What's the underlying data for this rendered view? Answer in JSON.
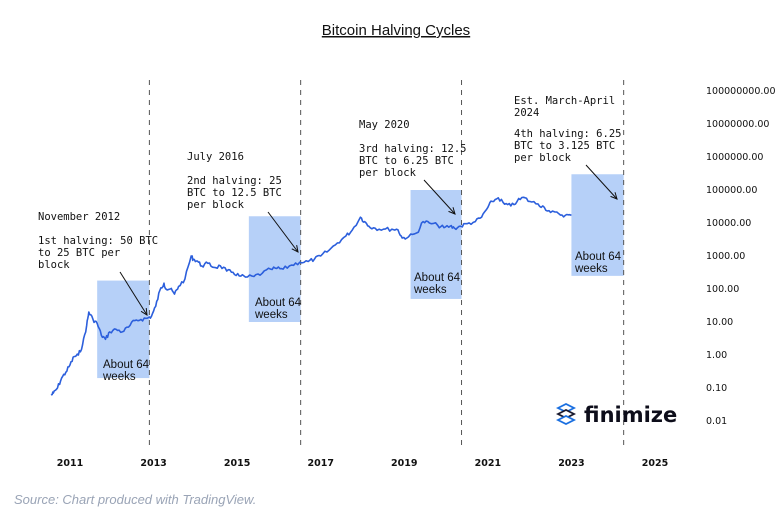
{
  "chart_data": {
    "type": "line",
    "title": "Bitcoin Halving Cycles",
    "y_scale": "log",
    "y_ticks": [
      "100000000.00",
      "10000000.00",
      "1000000.00",
      "100000.00",
      "10000.00",
      "1000.00",
      "100.00",
      "10.00",
      "1.00",
      "0.10",
      "0.01"
    ],
    "x_ticks": [
      "2011",
      "2013",
      "2015",
      "2017",
      "2019",
      "2021",
      "2023",
      "2025"
    ],
    "xlim": [
      2010.5,
      2025.5
    ],
    "ylim": [
      0.01,
      100000000
    ],
    "line_color": "#2c5fdc",
    "series": [
      {
        "x": [
          2010.55,
          2010.6,
          2010.7,
          2010.8,
          2010.9,
          2011.0,
          2011.1,
          2011.2,
          2011.3,
          2011.4,
          2011.45,
          2011.55,
          2011.65,
          2011.75,
          2011.85,
          2011.95,
          2012.1,
          2012.25,
          2012.4,
          2012.55,
          2012.7,
          2012.85,
          2012.95,
          2013.05,
          2013.15,
          2013.25,
          2013.3,
          2013.4,
          2013.5,
          2013.6,
          2013.75,
          2013.9,
          2013.95,
          2014.05,
          2014.15,
          2014.3,
          2014.45,
          2014.6,
          2014.75,
          2014.9,
          2015.05,
          2015.2,
          2015.4,
          2015.6,
          2015.8,
          2015.95,
          2016.1,
          2016.3,
          2016.5,
          2016.7,
          2016.85,
          2017.0,
          2017.2,
          2017.4,
          2017.6,
          2017.75,
          2017.95,
          2018.05,
          2018.15,
          2018.3,
          2018.5,
          2018.7,
          2018.85,
          2018.95,
          2019.1,
          2019.3,
          2019.45,
          2019.6,
          2019.8,
          2019.95,
          2020.1,
          2020.2,
          2020.35,
          2020.5,
          2020.7,
          2020.85,
          2021.0,
          2021.1,
          2021.25,
          2021.4,
          2021.55,
          2021.7,
          2021.85,
          2022.0,
          2022.2,
          2022.35,
          2022.5,
          2022.7,
          2022.85,
          2023.0
        ],
        "y": [
          0.06,
          0.07,
          0.1,
          0.2,
          0.3,
          0.5,
          0.9,
          1,
          2,
          8,
          20,
          12,
          9,
          4,
          3,
          5,
          6,
          5,
          7,
          11,
          12,
          13,
          15,
          30,
          90,
          150,
          100,
          100,
          70,
          120,
          200,
          1000,
          800,
          700,
          500,
          600,
          450,
          500,
          350,
          320,
          250,
          230,
          240,
          300,
          400,
          420,
          400,
          530,
          650,
          680,
          800,
          1000,
          1500,
          2500,
          4000,
          6000,
          15000,
          11000,
          8000,
          7000,
          6500,
          6500,
          6200,
          3500,
          3800,
          5000,
          11000,
          10000,
          8500,
          7200,
          8000,
          7000,
          8000,
          9500,
          11000,
          15000,
          30000,
          45000,
          58000,
          37000,
          33000,
          45000,
          60000,
          45000,
          38000,
          30000,
          21000,
          19000,
          17000,
          17000
        ]
      }
    ],
    "halving_lines": [
      2012.9,
      2016.52,
      2020.37,
      2024.25
    ],
    "bands": [
      {
        "start": 2011.65,
        "end": 2012.9,
        "low": 0.2,
        "high": 180
      },
      {
        "start": 2015.28,
        "end": 2016.52,
        "low": 10,
        "high": 16000
      },
      {
        "start": 2019.15,
        "end": 2020.37,
        "low": 50,
        "high": 100000
      },
      {
        "start": 2023.0,
        "end": 2024.25,
        "low": 250,
        "high": 300000
      }
    ],
    "annotations": [
      {
        "date_label": "November 2012",
        "text_lines": [
          "1st halving: 50 BTC",
          "to 25 BTC per",
          "block"
        ]
      },
      {
        "date_label": "July 2016",
        "text_lines": [
          "2nd halving: 25",
          "BTC to 12.5 BTC",
          "per block"
        ]
      },
      {
        "date_label": "May 2020",
        "text_lines": [
          "3rd halving: 12.5",
          "BTC to 6.25 BTC",
          "per block"
        ]
      },
      {
        "date_label": "Est. March-April",
        "date_label_2": "2024",
        "text_lines": [
          "4th halving: 6.25",
          "BTC to 3.125 BTC",
          "per block"
        ]
      }
    ],
    "band_labels": [
      [
        "About 64",
        "weeks"
      ],
      [
        "About 64",
        "weeks"
      ],
      [
        "About 64",
        "weeks"
      ],
      [
        "About 64",
        "weeks"
      ]
    ]
  },
  "brand": {
    "name": "finimize",
    "icon": "finimize-logo-icon"
  },
  "source": "Source: Chart produced with TradingView."
}
